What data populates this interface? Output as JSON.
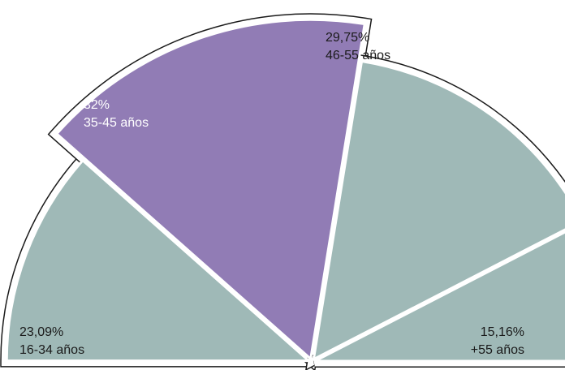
{
  "chart_data": {
    "type": "pie",
    "variant": "semicircle",
    "title": "",
    "slices": [
      {
        "value": 23.09,
        "percent_label": "23,09%",
        "category": "16-34 años",
        "color": "#9fb9b7",
        "text_color": "#1a1a1a",
        "highlighted": false
      },
      {
        "value": 32,
        "percent_label": "32%",
        "category": "35-45 años",
        "color": "#917cb5",
        "text_color": "#ffffff",
        "highlighted": true
      },
      {
        "value": 29.75,
        "percent_label": "29,75%",
        "category": "46-55 años",
        "color": "#9fb9b7",
        "text_color": "#1a1a1a",
        "highlighted": false
      },
      {
        "value": 15.16,
        "percent_label": "15,16%",
        "category": "+55 años",
        "color": "#9fb9b7",
        "text_color": "#1a1a1a",
        "highlighted": false
      }
    ],
    "outline_color": "#1a1a1a",
    "separator_color": "#ffffff"
  }
}
